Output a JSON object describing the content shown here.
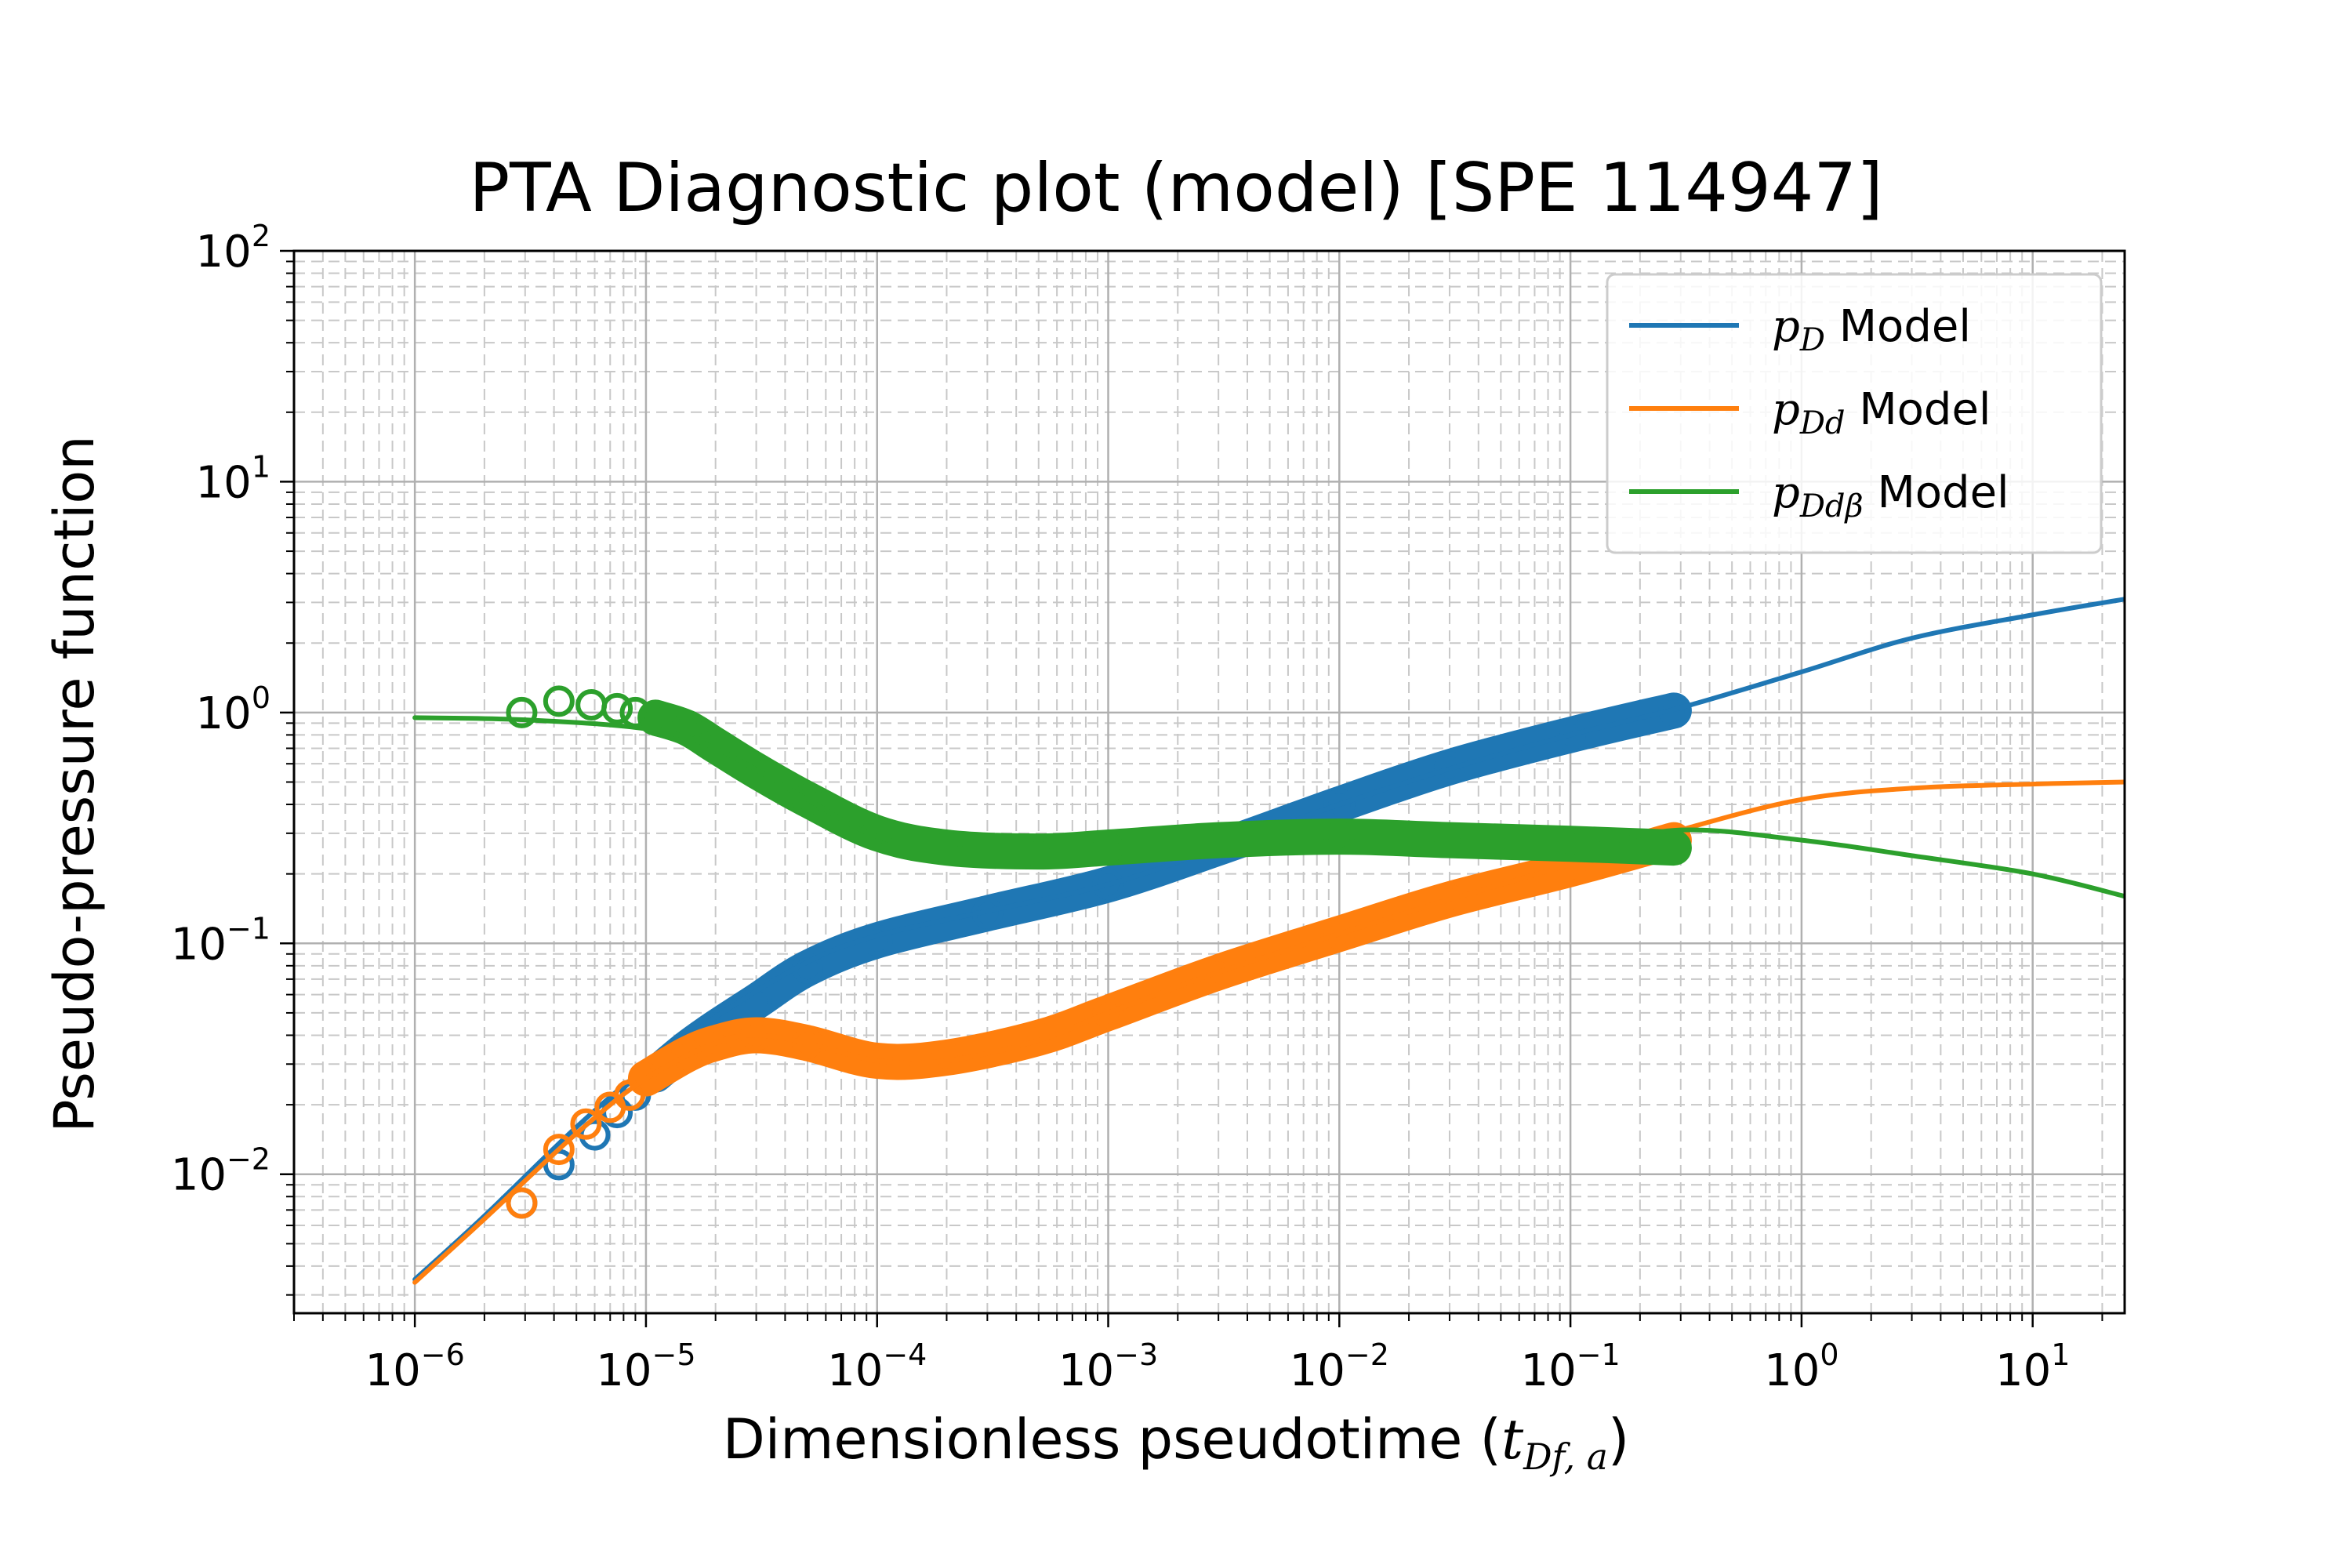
{
  "chart_data": {
    "type": "line",
    "title": "PTA Diagnostic plot (model) [SPE 114947]",
    "xlabel_text": "Dimensionless pseudotime (",
    "xlabel_math": "t",
    "xlabel_sub": "Df, a",
    "xlabel_close": ")",
    "ylabel": "Pseudo-pressure function",
    "xscale": "log",
    "yscale": "log",
    "xlim": [
      3e-07,
      25
    ],
    "ylim": [
      0.0025,
      100
    ],
    "x_ticks": [
      {
        "base": "10",
        "exp": "−6"
      },
      {
        "base": "10",
        "exp": "−5"
      },
      {
        "base": "10",
        "exp": "−4"
      },
      {
        "base": "10",
        "exp": "−3"
      },
      {
        "base": "10",
        "exp": "−2"
      },
      {
        "base": "10",
        "exp": "−1"
      },
      {
        "base": "10",
        "exp": "0"
      },
      {
        "base": "10",
        "exp": "1"
      }
    ],
    "y_ticks": [
      {
        "base": "10",
        "exp": "−2"
      },
      {
        "base": "10",
        "exp": "−1"
      },
      {
        "base": "10",
        "exp": "0"
      },
      {
        "base": "10",
        "exp": "1"
      },
      {
        "base": "10",
        "exp": "2"
      }
    ],
    "grid": "major solid, minor dashed",
    "legend_position": "top-right",
    "series": [
      {
        "name_math": "p",
        "name_sub": "D",
        "name_rest": " Model",
        "color": "#1f77b4",
        "line": [
          [
            1e-06,
            0.0035
          ],
          [
            2e-06,
            0.0066
          ],
          [
            5e-06,
            0.016
          ],
          [
            1e-05,
            0.029
          ],
          [
            2e-05,
            0.048
          ],
          [
            5e-05,
            0.083
          ],
          [
            0.0001,
            0.108
          ],
          [
            0.0003,
            0.138
          ],
          [
            0.001,
            0.18
          ],
          [
            0.003,
            0.26
          ],
          [
            0.01,
            0.4
          ],
          [
            0.03,
            0.57
          ],
          [
            0.1,
            0.8
          ],
          [
            0.3,
            1.05
          ],
          [
            1,
            1.5
          ],
          [
            3,
            2.1
          ],
          [
            10,
            2.65
          ],
          [
            25,
            3.1
          ]
        ],
        "markers": [
          [
            2.9e-06,
            0.0075
          ],
          [
            4.2e-06,
            0.011
          ],
          [
            6e-06,
            0.0148
          ],
          [
            7.5e-06,
            0.0185
          ],
          [
            9e-06,
            0.022
          ],
          [
            1.1e-05,
            0.027
          ],
          [
            1.5e-05,
            0.035
          ],
          [
            2e-05,
            0.043
          ],
          [
            3e-05,
            0.056
          ],
          [
            5e-05,
            0.078
          ],
          [
            0.0001,
            0.103
          ],
          [
            0.0003,
            0.135
          ],
          [
            0.001,
            0.18
          ],
          [
            0.003,
            0.26
          ],
          [
            0.01,
            0.4
          ],
          [
            0.03,
            0.58
          ],
          [
            0.1,
            0.8
          ],
          [
            0.28,
            1.02
          ]
        ]
      },
      {
        "name_math": "p",
        "name_sub": "Dd",
        "name_rest": " Model",
        "color": "#ff7f0e",
        "line": [
          [
            1e-06,
            0.0034
          ],
          [
            2e-06,
            0.0064
          ],
          [
            5e-06,
            0.015
          ],
          [
            1e-05,
            0.026
          ],
          [
            2e-05,
            0.037
          ],
          [
            3e-05,
            0.04
          ],
          [
            5e-05,
            0.037
          ],
          [
            0.0001,
            0.031
          ],
          [
            0.0002,
            0.031
          ],
          [
            0.0005,
            0.038
          ],
          [
            0.001,
            0.05
          ],
          [
            0.003,
            0.075
          ],
          [
            0.01,
            0.11
          ],
          [
            0.03,
            0.155
          ],
          [
            0.1,
            0.22
          ],
          [
            0.3,
            0.31
          ],
          [
            1,
            0.42
          ],
          [
            3,
            0.47
          ],
          [
            10,
            0.49
          ],
          [
            25,
            0.5
          ]
        ],
        "markers": [
          [
            2.9e-06,
            0.0075
          ],
          [
            4.2e-06,
            0.0128
          ],
          [
            5.5e-06,
            0.0165
          ],
          [
            7e-06,
            0.0195
          ],
          [
            8.5e-06,
            0.022
          ],
          [
            1e-05,
            0.026
          ],
          [
            1.5e-05,
            0.033
          ],
          [
            2e-05,
            0.037
          ],
          [
            3e-05,
            0.04
          ],
          [
            5e-05,
            0.037
          ],
          [
            0.0001,
            0.031
          ],
          [
            0.0002,
            0.032
          ],
          [
            0.0005,
            0.039
          ],
          [
            0.001,
            0.05
          ],
          [
            0.003,
            0.075
          ],
          [
            0.01,
            0.11
          ],
          [
            0.03,
            0.155
          ],
          [
            0.1,
            0.21
          ],
          [
            0.28,
            0.28
          ]
        ]
      },
      {
        "name_math": "p",
        "name_sub": "Ddβ",
        "name_rest": " Model",
        "color": "#2ca02c",
        "line": [
          [
            1e-06,
            0.95
          ],
          [
            3e-06,
            0.93
          ],
          [
            1e-05,
            0.85
          ],
          [
            2e-05,
            0.7
          ],
          [
            5e-05,
            0.42
          ],
          [
            0.0001,
            0.29
          ],
          [
            0.0002,
            0.26
          ],
          [
            0.0005,
            0.25
          ],
          [
            0.001,
            0.26
          ],
          [
            0.003,
            0.28
          ],
          [
            0.01,
            0.29
          ],
          [
            0.03,
            0.28
          ],
          [
            0.1,
            0.26
          ],
          [
            0.3,
            0.31
          ],
          [
            1,
            0.28
          ],
          [
            3,
            0.24
          ],
          [
            10,
            0.2
          ],
          [
            25,
            0.16
          ]
        ],
        "markers": [
          [
            2.9e-06,
            1.0
          ],
          [
            4.2e-06,
            1.12
          ],
          [
            5.8e-06,
            1.08
          ],
          [
            7.5e-06,
            1.04
          ],
          [
            9e-06,
            1.0
          ],
          [
            1.1e-05,
            0.95
          ],
          [
            1.5e-05,
            0.86
          ],
          [
            2e-05,
            0.72
          ],
          [
            3e-05,
            0.56
          ],
          [
            5e-05,
            0.42
          ],
          [
            0.0001,
            0.3
          ],
          [
            0.0002,
            0.26
          ],
          [
            0.0005,
            0.25
          ],
          [
            0.001,
            0.26
          ],
          [
            0.003,
            0.28
          ],
          [
            0.01,
            0.29
          ],
          [
            0.03,
            0.28
          ],
          [
            0.1,
            0.27
          ],
          [
            0.28,
            0.26
          ]
        ]
      }
    ]
  }
}
